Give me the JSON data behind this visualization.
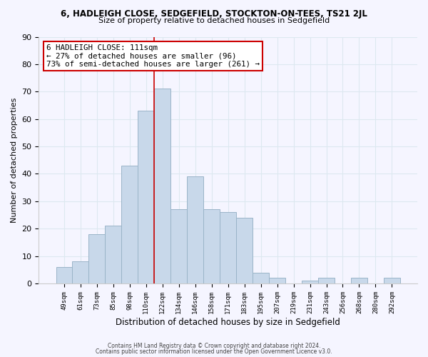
{
  "title_line1": "6, HADLEIGH CLOSE, SEDGEFIELD, STOCKTON-ON-TEES, TS21 2JL",
  "title_line2": "Size of property relative to detached houses in Sedgefield",
  "xlabel": "Distribution of detached houses by size in Sedgefield",
  "ylabel": "Number of detached properties",
  "bar_labels": [
    "49sqm",
    "61sqm",
    "73sqm",
    "85sqm",
    "98sqm",
    "110sqm",
    "122sqm",
    "134sqm",
    "146sqm",
    "158sqm",
    "171sqm",
    "183sqm",
    "195sqm",
    "207sqm",
    "219sqm",
    "231sqm",
    "243sqm",
    "256sqm",
    "268sqm",
    "280sqm",
    "292sqm"
  ],
  "bar_heights": [
    6,
    8,
    18,
    21,
    43,
    63,
    71,
    27,
    39,
    27,
    26,
    24,
    4,
    2,
    0,
    1,
    2,
    0,
    2,
    0,
    2
  ],
  "bar_color": "#c8d8ea",
  "bar_edge_color": "#9ab4c8",
  "vline_x_index": 5,
  "vline_color": "#cc0000",
  "annotation_title": "6 HADLEIGH CLOSE: 111sqm",
  "annotation_line2": "← 27% of detached houses are smaller (96)",
  "annotation_line3": "73% of semi-detached houses are larger (261) →",
  "annotation_box_color": "#ffffff",
  "annotation_box_edge": "#cc0000",
  "ylim": [
    0,
    90
  ],
  "yticks": [
    0,
    10,
    20,
    30,
    40,
    50,
    60,
    70,
    80,
    90
  ],
  "footer_line1": "Contains HM Land Registry data © Crown copyright and database right 2024.",
  "footer_line2": "Contains public sector information licensed under the Open Government Licence v3.0.",
  "bg_color": "#f5f5ff",
  "grid_color": "#dde8f0"
}
